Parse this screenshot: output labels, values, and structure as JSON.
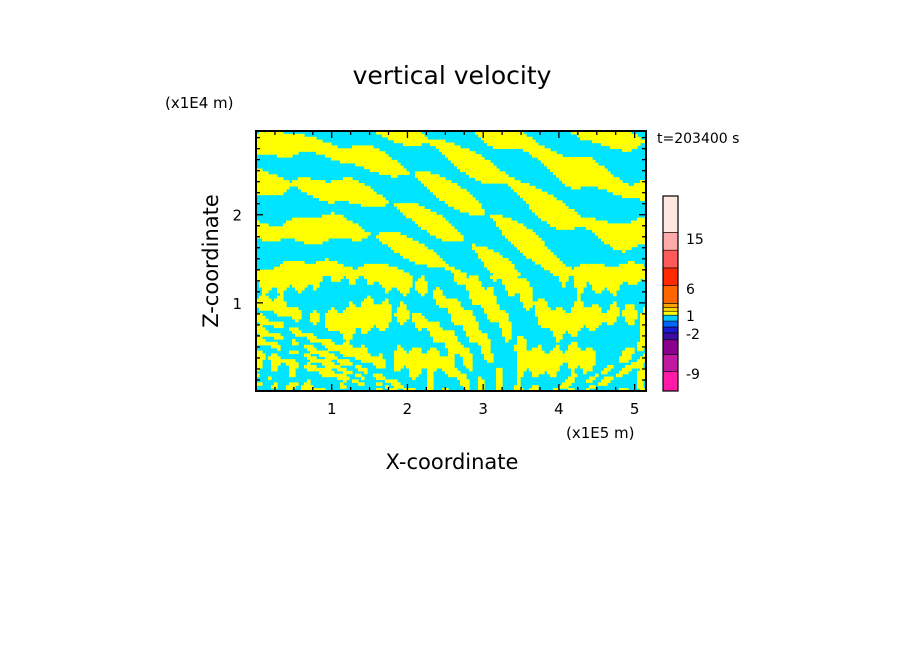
{
  "chart_data": {
    "type": "heatmap",
    "title": "vertical velocity",
    "xlabel": "X-coordinate",
    "ylabel": "Z-coordinate",
    "x_unit": "(x1E5 m)",
    "y_unit": "(x1E4 m)",
    "time_label": "t=203400 s",
    "xlim": [
      0,
      5.15
    ],
    "ylim": [
      0,
      2.95
    ],
    "x_ticks": [
      1,
      2,
      3,
      4,
      5
    ],
    "y_ticks": [
      1,
      2
    ],
    "field_colors": {
      "positive": "#ffff00",
      "negative": "#00e5ff"
    },
    "colorbar": {
      "levels": [
        {
          "color": "#ff1aa8"
        },
        {
          "color": "#c01aa0"
        },
        {
          "color": "#8c0090"
        },
        {
          "color": "#3d0fa0"
        },
        {
          "color": "#1a1ad0"
        },
        {
          "color": "#0066ff"
        },
        {
          "color": "#00ccff"
        },
        {
          "color": "#ffff00"
        },
        {
          "color": "#ffd700"
        },
        {
          "color": "#ffa500"
        },
        {
          "color": "#ff6600"
        },
        {
          "color": "#ff2a00"
        },
        {
          "color": "#ff5a5a"
        },
        {
          "color": "#ffaaaa"
        },
        {
          "color": "#ffe6e0"
        }
      ],
      "labels": [
        "15",
        "6",
        "1",
        "-2",
        "-9"
      ]
    }
  }
}
